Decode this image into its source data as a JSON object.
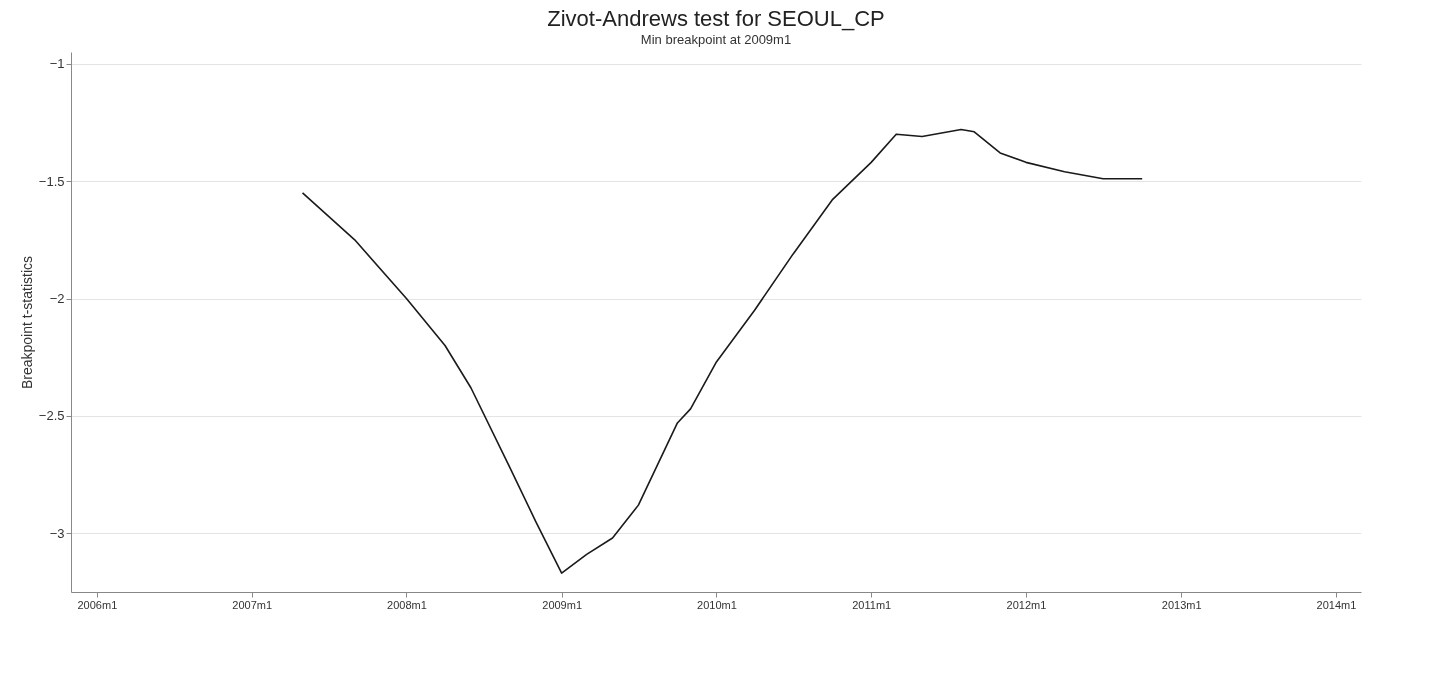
{
  "chart_data": {
    "type": "line",
    "title": "Zivot-Andrews test for SEOUL_CP",
    "subtitle": "Min breakpoint at 2009m1",
    "ylabel": "Breakpoint t-statistics",
    "x": [
      "2007-05",
      "2007-09",
      "2008-01",
      "2008-04",
      "2008-06",
      "2008-09",
      "2008-11",
      "2009-01",
      "2009-03",
      "2009-05",
      "2009-07",
      "2009-10",
      "2009-11",
      "2010-01",
      "2010-04",
      "2010-07",
      "2010-10",
      "2011-01",
      "2011-03",
      "2011-05",
      "2011-08",
      "2011-09",
      "2011-11",
      "2012-01",
      "2012-04",
      "2012-07",
      "2012-10"
    ],
    "series": [
      {
        "color": "#1a1a1a",
        "values": [
          -1.55,
          -1.75,
          -2.0,
          -2.2,
          -2.38,
          -2.72,
          -2.95,
          -3.17,
          -3.09,
          -3.02,
          -2.88,
          -2.53,
          -2.47,
          -2.27,
          -2.05,
          -1.81,
          -1.58,
          -1.42,
          -1.3,
          -1.31,
          -1.28,
          -1.29,
          -1.38,
          -1.42,
          -1.46,
          -1.49,
          -1.49
        ]
      }
    ],
    "xlim": [
      "2005-11",
      "2014-03"
    ],
    "ylim": [
      -3.25,
      -0.95
    ],
    "xticks": [
      {
        "value": "2006-01",
        "label": "2006m1"
      },
      {
        "value": "2007-01",
        "label": "2007m1"
      },
      {
        "value": "2008-01",
        "label": "2008m1"
      },
      {
        "value": "2009-01",
        "label": "2009m1"
      },
      {
        "value": "2010-01",
        "label": "2010m1"
      },
      {
        "value": "2011-01",
        "label": "2011m1"
      },
      {
        "value": "2012-01",
        "label": "2012m1"
      },
      {
        "value": "2013-01",
        "label": "2013m1"
      },
      {
        "value": "2014-01",
        "label": "2014m1"
      }
    ],
    "yticks": [
      -3,
      -2.5,
      -2,
      -1.5,
      -1
    ],
    "grid": "y",
    "line_style": "solid"
  }
}
